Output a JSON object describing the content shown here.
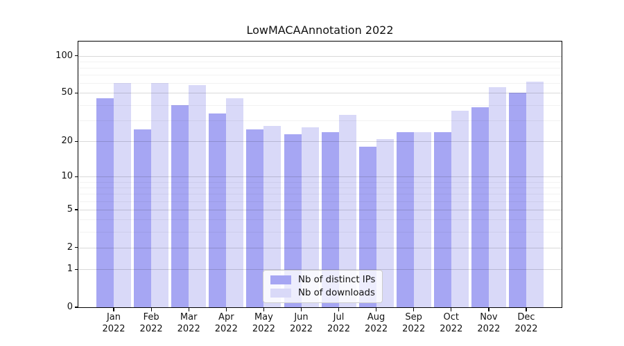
{
  "figure": {
    "title": "LowMACAAnnotation 2022"
  },
  "legend": {
    "items": [
      {
        "label": "Nb of distinct IPs",
        "color": "#a6a6f3"
      },
      {
        "label": "Nb of downloads",
        "color": "#d9d9f8"
      }
    ]
  },
  "chart_data": {
    "type": "bar",
    "title": "LowMACAAnnotation 2022",
    "categories": [
      "Jan",
      "Feb",
      "Mar",
      "Apr",
      "May",
      "Jun",
      "Jul",
      "Aug",
      "Sep",
      "Oct",
      "Nov",
      "Dec"
    ],
    "year": "2022",
    "series": [
      {
        "name": "Nb of distinct IPs",
        "color": "#a6a6f3",
        "values": [
          45,
          25,
          40,
          34,
          25,
          23,
          24,
          18,
          24,
          24,
          38,
          50
        ]
      },
      {
        "name": "Nb of downloads",
        "color": "#d9d9f8",
        "values": [
          60,
          60,
          58,
          45,
          27,
          26,
          33,
          21,
          24,
          36,
          56,
          62
        ]
      }
    ],
    "yscale": "log1p",
    "yticks": [
      0,
      1,
      2,
      5,
      10,
      20,
      50,
      100
    ],
    "minor_gridlines": [
      3,
      4,
      6,
      7,
      8,
      9,
      30,
      40,
      60,
      70,
      80,
      90
    ],
    "ylim_top": 130,
    "grid": true,
    "legend_position": "lower center"
  }
}
